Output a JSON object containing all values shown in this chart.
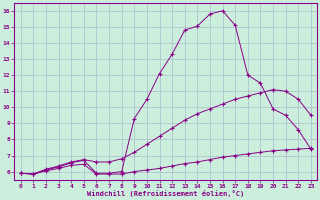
{
  "xlabel": "Windchill (Refroidissement éolien,°C)",
  "bg_color": "#cceedd",
  "line_color": "#880088",
  "grid_color": "#aabbcc",
  "xlim": [
    -0.5,
    23.5
  ],
  "ylim": [
    5.5,
    16.5
  ],
  "xticks": [
    0,
    1,
    2,
    3,
    4,
    5,
    6,
    7,
    8,
    9,
    10,
    11,
    12,
    13,
    14,
    15,
    16,
    17,
    18,
    19,
    20,
    21,
    22,
    23
  ],
  "yticks": [
    6,
    7,
    8,
    9,
    10,
    11,
    12,
    13,
    14,
    15,
    16
  ],
  "line1_x": [
    0,
    1,
    2,
    3,
    4,
    5,
    6,
    7,
    8,
    9,
    10,
    11,
    12,
    13,
    14,
    15,
    16,
    17,
    18,
    19,
    20,
    21,
    22,
    23
  ],
  "line1_y": [
    5.9,
    5.85,
    6.1,
    6.3,
    6.55,
    6.7,
    5.9,
    5.9,
    6.0,
    9.3,
    10.5,
    12.1,
    13.3,
    14.8,
    15.05,
    15.8,
    16.0,
    15.1,
    12.0,
    11.5,
    9.9,
    9.5,
    8.6,
    7.4
  ],
  "line2_x": [
    0,
    1,
    2,
    3,
    4,
    5,
    6,
    7,
    8,
    9,
    10,
    11,
    12,
    13,
    14,
    15,
    16,
    17,
    18,
    19,
    20,
    21,
    22,
    23
  ],
  "line2_y": [
    5.9,
    5.85,
    6.15,
    6.35,
    6.6,
    6.75,
    6.6,
    6.6,
    6.8,
    7.2,
    7.7,
    8.2,
    8.7,
    9.2,
    9.6,
    9.9,
    10.2,
    10.5,
    10.7,
    10.9,
    11.1,
    11.0,
    10.5,
    9.5
  ],
  "line3_x": [
    0,
    1,
    2,
    3,
    4,
    5,
    6,
    7,
    8,
    9,
    10,
    11,
    12,
    13,
    14,
    15,
    16,
    17,
    18,
    19,
    20,
    21,
    22,
    23
  ],
  "line3_y": [
    5.9,
    5.85,
    6.05,
    6.2,
    6.4,
    6.45,
    5.85,
    5.85,
    5.85,
    6.0,
    6.1,
    6.2,
    6.35,
    6.5,
    6.6,
    6.75,
    6.9,
    7.0,
    7.1,
    7.2,
    7.3,
    7.35,
    7.4,
    7.45
  ]
}
